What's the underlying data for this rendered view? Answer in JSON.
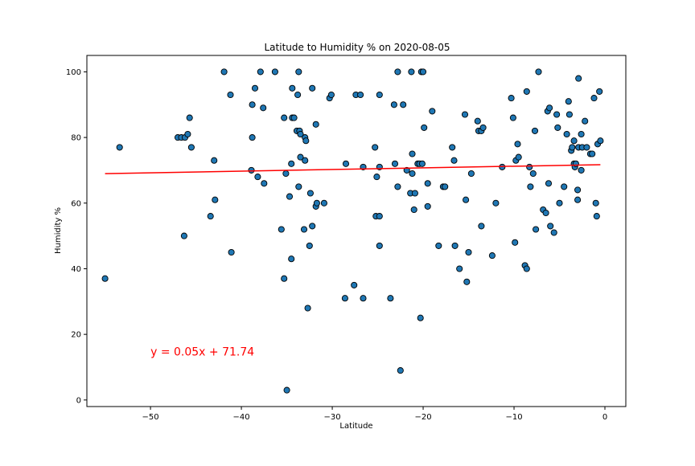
{
  "chart_data": {
    "type": "scatter",
    "title": "Latitude to Humidity % on 2020-08-05",
    "xlabel": "Latitude",
    "ylabel": "Humidity %",
    "xlim": [
      -57,
      2.3
    ],
    "ylim": [
      -2,
      105
    ],
    "xticks": [
      -50,
      -40,
      -30,
      -20,
      -10,
      0
    ],
    "yticks": [
      0,
      20,
      40,
      60,
      80,
      100
    ],
    "grid": false,
    "point_color": "#1f77b4",
    "point_edge_color": "#000000",
    "line_color": "#ff0000",
    "regression": {
      "slope": 0.05,
      "intercept": 71.74,
      "x_range": [
        -55,
        -0.5
      ]
    },
    "annotation": {
      "text": "y = 0.05x + 71.74",
      "x": -50,
      "y": 13.5
    },
    "points": [
      [
        -55.0,
        37
      ],
      [
        -53.4,
        77
      ],
      [
        -47.0,
        80
      ],
      [
        -46.6,
        80
      ],
      [
        -46.3,
        50
      ],
      [
        -46.2,
        80
      ],
      [
        -45.9,
        81
      ],
      [
        -45.7,
        86
      ],
      [
        -45.5,
        77
      ],
      [
        -43.4,
        56
      ],
      [
        -43.0,
        73
      ],
      [
        -42.9,
        61
      ],
      [
        -41.9,
        100
      ],
      [
        -41.2,
        93
      ],
      [
        -41.1,
        45
      ],
      [
        -38.9,
        70
      ],
      [
        -38.8,
        90
      ],
      [
        -38.8,
        80
      ],
      [
        -38.5,
        95
      ],
      [
        -38.2,
        68
      ],
      [
        -37.9,
        100
      ],
      [
        -37.6,
        89
      ],
      [
        -37.5,
        66
      ],
      [
        -36.3,
        100
      ],
      [
        -35.6,
        52
      ],
      [
        -35.3,
        37
      ],
      [
        -35.3,
        86
      ],
      [
        -35.1,
        69
      ],
      [
        -35.0,
        3
      ],
      [
        -34.7,
        62
      ],
      [
        -34.5,
        72
      ],
      [
        -34.5,
        43
      ],
      [
        -34.4,
        86
      ],
      [
        -34.4,
        95
      ],
      [
        -34.2,
        86
      ],
      [
        -33.9,
        82
      ],
      [
        -33.8,
        93
      ],
      [
        -33.7,
        65
      ],
      [
        -33.7,
        100
      ],
      [
        -33.6,
        82
      ],
      [
        -33.5,
        81
      ],
      [
        -33.5,
        74
      ],
      [
        -33.1,
        52
      ],
      [
        -33.0,
        73
      ],
      [
        -33.0,
        80
      ],
      [
        -32.9,
        79
      ],
      [
        -32.7,
        28
      ],
      [
        -32.5,
        47
      ],
      [
        -32.4,
        63
      ],
      [
        -32.2,
        53
      ],
      [
        -32.2,
        95
      ],
      [
        -31.8,
        59
      ],
      [
        -31.8,
        84
      ],
      [
        -31.7,
        60
      ],
      [
        -30.9,
        60
      ],
      [
        -30.3,
        92
      ],
      [
        -30.1,
        93
      ],
      [
        -28.6,
        31
      ],
      [
        -28.5,
        72
      ],
      [
        -27.6,
        35
      ],
      [
        -27.4,
        93
      ],
      [
        -26.9,
        93
      ],
      [
        -26.6,
        31
      ],
      [
        -26.6,
        71
      ],
      [
        -25.3,
        77
      ],
      [
        -25.2,
        56
      ],
      [
        -25.1,
        68
      ],
      [
        -24.8,
        71
      ],
      [
        -24.8,
        56
      ],
      [
        -24.8,
        93
      ],
      [
        -24.8,
        47
      ],
      [
        -23.6,
        31
      ],
      [
        -23.2,
        90
      ],
      [
        -23.1,
        72
      ],
      [
        -22.8,
        65
      ],
      [
        -22.8,
        100
      ],
      [
        -22.5,
        9
      ],
      [
        -22.2,
        90
      ],
      [
        -21.8,
        70
      ],
      [
        -21.4,
        63
      ],
      [
        -21.3,
        100
      ],
      [
        -21.2,
        69
      ],
      [
        -21.2,
        75
      ],
      [
        -21.0,
        58
      ],
      [
        -20.9,
        63
      ],
      [
        -20.6,
        72
      ],
      [
        -20.4,
        72
      ],
      [
        -20.3,
        25
      ],
      [
        -20.2,
        100
      ],
      [
        -20.1,
        72
      ],
      [
        -20.0,
        100
      ],
      [
        -19.9,
        83
      ],
      [
        -19.5,
        66
      ],
      [
        -19.5,
        59
      ],
      [
        -19.0,
        88
      ],
      [
        -18.3,
        47
      ],
      [
        -17.8,
        65
      ],
      [
        -17.6,
        65
      ],
      [
        -16.8,
        77
      ],
      [
        -16.6,
        73
      ],
      [
        -16.5,
        47
      ],
      [
        -16.0,
        40
      ],
      [
        -15.4,
        87
      ],
      [
        -15.3,
        61
      ],
      [
        -15.2,
        36
      ],
      [
        -15.0,
        45
      ],
      [
        -14.7,
        69
      ],
      [
        -14.0,
        85
      ],
      [
        -13.9,
        82
      ],
      [
        -13.6,
        53
      ],
      [
        -13.6,
        82
      ],
      [
        -13.4,
        83
      ],
      [
        -12.4,
        44
      ],
      [
        -12.0,
        60
      ],
      [
        -11.3,
        71
      ],
      [
        -10.3,
        92
      ],
      [
        -10.1,
        86
      ],
      [
        -9.9,
        48
      ],
      [
        -9.8,
        73
      ],
      [
        -9.6,
        78
      ],
      [
        -9.5,
        74
      ],
      [
        -8.8,
        41
      ],
      [
        -8.6,
        94
      ],
      [
        -8.6,
        40
      ],
      [
        -8.3,
        71
      ],
      [
        -8.2,
        65
      ],
      [
        -7.9,
        69
      ],
      [
        -7.7,
        82
      ],
      [
        -7.6,
        52
      ],
      [
        -7.3,
        100
      ],
      [
        -6.8,
        58
      ],
      [
        -6.5,
        57
      ],
      [
        -6.3,
        88
      ],
      [
        -6.2,
        66
      ],
      [
        -6.1,
        89
      ],
      [
        -6.0,
        53
      ],
      [
        -5.6,
        51
      ],
      [
        -5.3,
        87
      ],
      [
        -5.2,
        83
      ],
      [
        -5.0,
        60
      ],
      [
        -4.5,
        65
      ],
      [
        -4.2,
        81
      ],
      [
        -4.0,
        91
      ],
      [
        -3.9,
        87
      ],
      [
        -3.7,
        76
      ],
      [
        -3.6,
        77
      ],
      [
        -3.4,
        79
      ],
      [
        -3.4,
        72
      ],
      [
        -3.3,
        71
      ],
      [
        -3.2,
        72
      ],
      [
        -3.0,
        61
      ],
      [
        -3.0,
        64
      ],
      [
        -2.9,
        98
      ],
      [
        -2.9,
        77
      ],
      [
        -2.6,
        70
      ],
      [
        -2.6,
        81
      ],
      [
        -2.5,
        77
      ],
      [
        -2.2,
        85
      ],
      [
        -2.0,
        77
      ],
      [
        -1.6,
        75
      ],
      [
        -1.4,
        75
      ],
      [
        -1.2,
        92
      ],
      [
        -1.0,
        60
      ],
      [
        -0.9,
        56
      ],
      [
        -0.8,
        78
      ],
      [
        -0.6,
        94
      ],
      [
        -0.5,
        79
      ]
    ]
  }
}
